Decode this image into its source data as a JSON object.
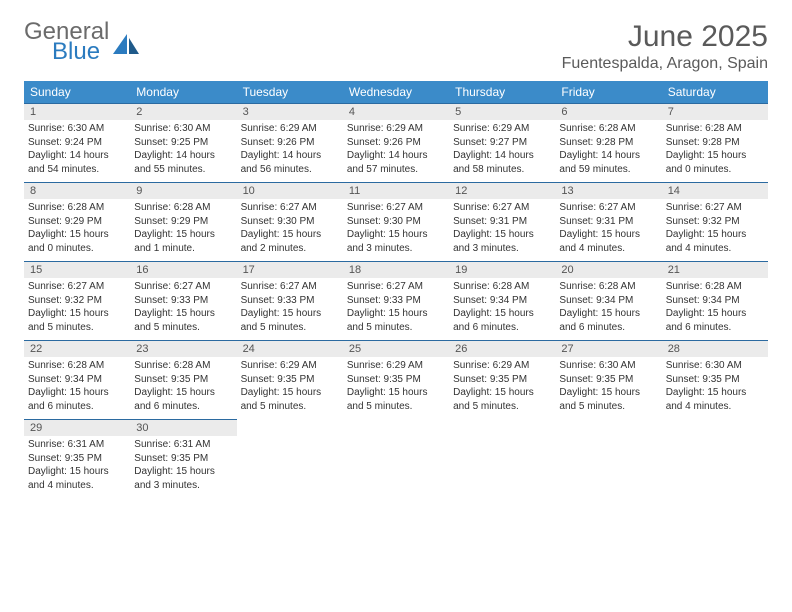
{
  "brand": {
    "word1": "General",
    "word2": "Blue",
    "word1_color": "#6b6b6b",
    "word2_color": "#2b7bbf",
    "sail_color": "#2b7bbf"
  },
  "header": {
    "title": "June 2025",
    "location": "Fuentespalda, Aragon, Spain",
    "title_color": "#5a5a5a"
  },
  "colors": {
    "header_bg": "#3b8bc9",
    "header_fg": "#ffffff",
    "daynum_bg": "#ebebeb",
    "daynum_border": "#2b6aa0",
    "text": "#333333"
  },
  "dayNames": [
    "Sunday",
    "Monday",
    "Tuesday",
    "Wednesday",
    "Thursday",
    "Friday",
    "Saturday"
  ],
  "weeks": [
    [
      {
        "n": "1",
        "sr": "Sunrise: 6:30 AM",
        "ss": "Sunset: 9:24 PM",
        "d1": "Daylight: 14 hours",
        "d2": "and 54 minutes."
      },
      {
        "n": "2",
        "sr": "Sunrise: 6:30 AM",
        "ss": "Sunset: 9:25 PM",
        "d1": "Daylight: 14 hours",
        "d2": "and 55 minutes."
      },
      {
        "n": "3",
        "sr": "Sunrise: 6:29 AM",
        "ss": "Sunset: 9:26 PM",
        "d1": "Daylight: 14 hours",
        "d2": "and 56 minutes."
      },
      {
        "n": "4",
        "sr": "Sunrise: 6:29 AM",
        "ss": "Sunset: 9:26 PM",
        "d1": "Daylight: 14 hours",
        "d2": "and 57 minutes."
      },
      {
        "n": "5",
        "sr": "Sunrise: 6:29 AM",
        "ss": "Sunset: 9:27 PM",
        "d1": "Daylight: 14 hours",
        "d2": "and 58 minutes."
      },
      {
        "n": "6",
        "sr": "Sunrise: 6:28 AM",
        "ss": "Sunset: 9:28 PM",
        "d1": "Daylight: 14 hours",
        "d2": "and 59 minutes."
      },
      {
        "n": "7",
        "sr": "Sunrise: 6:28 AM",
        "ss": "Sunset: 9:28 PM",
        "d1": "Daylight: 15 hours",
        "d2": "and 0 minutes."
      }
    ],
    [
      {
        "n": "8",
        "sr": "Sunrise: 6:28 AM",
        "ss": "Sunset: 9:29 PM",
        "d1": "Daylight: 15 hours",
        "d2": "and 0 minutes."
      },
      {
        "n": "9",
        "sr": "Sunrise: 6:28 AM",
        "ss": "Sunset: 9:29 PM",
        "d1": "Daylight: 15 hours",
        "d2": "and 1 minute."
      },
      {
        "n": "10",
        "sr": "Sunrise: 6:27 AM",
        "ss": "Sunset: 9:30 PM",
        "d1": "Daylight: 15 hours",
        "d2": "and 2 minutes."
      },
      {
        "n": "11",
        "sr": "Sunrise: 6:27 AM",
        "ss": "Sunset: 9:30 PM",
        "d1": "Daylight: 15 hours",
        "d2": "and 3 minutes."
      },
      {
        "n": "12",
        "sr": "Sunrise: 6:27 AM",
        "ss": "Sunset: 9:31 PM",
        "d1": "Daylight: 15 hours",
        "d2": "and 3 minutes."
      },
      {
        "n": "13",
        "sr": "Sunrise: 6:27 AM",
        "ss": "Sunset: 9:31 PM",
        "d1": "Daylight: 15 hours",
        "d2": "and 4 minutes."
      },
      {
        "n": "14",
        "sr": "Sunrise: 6:27 AM",
        "ss": "Sunset: 9:32 PM",
        "d1": "Daylight: 15 hours",
        "d2": "and 4 minutes."
      }
    ],
    [
      {
        "n": "15",
        "sr": "Sunrise: 6:27 AM",
        "ss": "Sunset: 9:32 PM",
        "d1": "Daylight: 15 hours",
        "d2": "and 5 minutes."
      },
      {
        "n": "16",
        "sr": "Sunrise: 6:27 AM",
        "ss": "Sunset: 9:33 PM",
        "d1": "Daylight: 15 hours",
        "d2": "and 5 minutes."
      },
      {
        "n": "17",
        "sr": "Sunrise: 6:27 AM",
        "ss": "Sunset: 9:33 PM",
        "d1": "Daylight: 15 hours",
        "d2": "and 5 minutes."
      },
      {
        "n": "18",
        "sr": "Sunrise: 6:27 AM",
        "ss": "Sunset: 9:33 PM",
        "d1": "Daylight: 15 hours",
        "d2": "and 5 minutes."
      },
      {
        "n": "19",
        "sr": "Sunrise: 6:28 AM",
        "ss": "Sunset: 9:34 PM",
        "d1": "Daylight: 15 hours",
        "d2": "and 6 minutes."
      },
      {
        "n": "20",
        "sr": "Sunrise: 6:28 AM",
        "ss": "Sunset: 9:34 PM",
        "d1": "Daylight: 15 hours",
        "d2": "and 6 minutes."
      },
      {
        "n": "21",
        "sr": "Sunrise: 6:28 AM",
        "ss": "Sunset: 9:34 PM",
        "d1": "Daylight: 15 hours",
        "d2": "and 6 minutes."
      }
    ],
    [
      {
        "n": "22",
        "sr": "Sunrise: 6:28 AM",
        "ss": "Sunset: 9:34 PM",
        "d1": "Daylight: 15 hours",
        "d2": "and 6 minutes."
      },
      {
        "n": "23",
        "sr": "Sunrise: 6:28 AM",
        "ss": "Sunset: 9:35 PM",
        "d1": "Daylight: 15 hours",
        "d2": "and 6 minutes."
      },
      {
        "n": "24",
        "sr": "Sunrise: 6:29 AM",
        "ss": "Sunset: 9:35 PM",
        "d1": "Daylight: 15 hours",
        "d2": "and 5 minutes."
      },
      {
        "n": "25",
        "sr": "Sunrise: 6:29 AM",
        "ss": "Sunset: 9:35 PM",
        "d1": "Daylight: 15 hours",
        "d2": "and 5 minutes."
      },
      {
        "n": "26",
        "sr": "Sunrise: 6:29 AM",
        "ss": "Sunset: 9:35 PM",
        "d1": "Daylight: 15 hours",
        "d2": "and 5 minutes."
      },
      {
        "n": "27",
        "sr": "Sunrise: 6:30 AM",
        "ss": "Sunset: 9:35 PM",
        "d1": "Daylight: 15 hours",
        "d2": "and 5 minutes."
      },
      {
        "n": "28",
        "sr": "Sunrise: 6:30 AM",
        "ss": "Sunset: 9:35 PM",
        "d1": "Daylight: 15 hours",
        "d2": "and 4 minutes."
      }
    ],
    [
      {
        "n": "29",
        "sr": "Sunrise: 6:31 AM",
        "ss": "Sunset: 9:35 PM",
        "d1": "Daylight: 15 hours",
        "d2": "and 4 minutes."
      },
      {
        "n": "30",
        "sr": "Sunrise: 6:31 AM",
        "ss": "Sunset: 9:35 PM",
        "d1": "Daylight: 15 hours",
        "d2": "and 3 minutes."
      },
      null,
      null,
      null,
      null,
      null
    ]
  ]
}
